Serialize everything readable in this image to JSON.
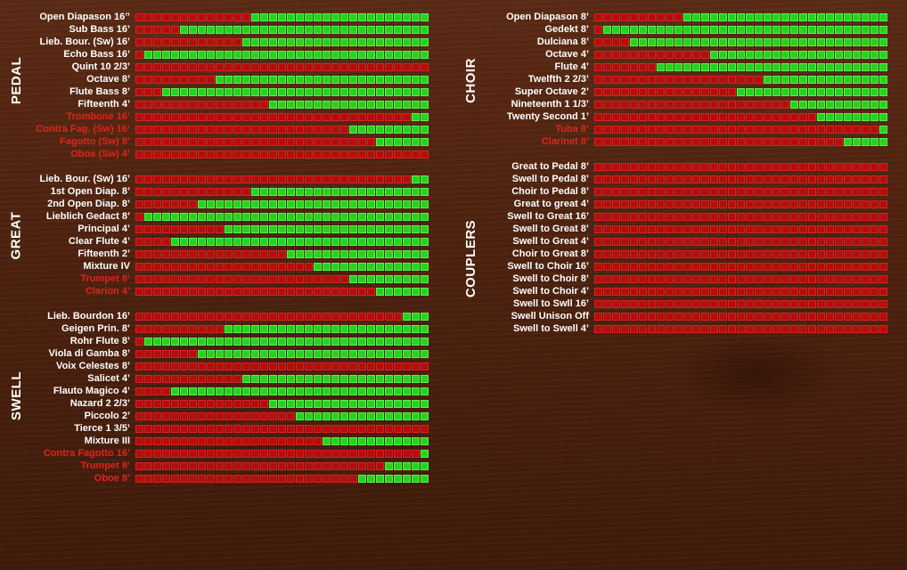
{
  "colors": {
    "engaged": "#22d51c",
    "disengaged": "#b30d0d",
    "reed_label": "#e2231a"
  },
  "divisions": [
    {
      "label": "PEDAL",
      "side": "left",
      "stops": [
        {
          "name": "Open Diapason 16’’",
          "reed": false,
          "level": 0.61
        },
        {
          "name": "Sub Bass 16’",
          "reed": false,
          "level": 0.85
        },
        {
          "name": "Lieb. Bour. (Sw) 16’",
          "reed": false,
          "level": 0.64
        },
        {
          "name": "Echo Bass 16’",
          "reed": false,
          "level": 0.97
        },
        {
          "name": "Quint 10 2/3’",
          "reed": false,
          "level": 0
        },
        {
          "name": "Octave 8’",
          "reed": false,
          "level": 0.73
        },
        {
          "name": "Flute Bass 8’",
          "reed": false,
          "level": 0.91
        },
        {
          "name": "Fifteenth 4’",
          "reed": false,
          "level": 0.55
        },
        {
          "name": "Trombone 16’",
          "reed": true,
          "level": 0.06
        },
        {
          "name": "Contra Fag. (Sw) 16’",
          "reed": true,
          "level": 0.27
        },
        {
          "name": "Fagotto (Sw) 8’",
          "reed": true,
          "level": 0.18
        },
        {
          "name": "Oboe (Sw) 4’",
          "reed": true,
          "level": 0
        }
      ]
    },
    {
      "label": "GREAT",
      "side": "left",
      "stops": [
        {
          "name": "Lieb. Bour. (Sw) 16’",
          "reed": false,
          "level": 0.06
        },
        {
          "name": "1st Open Diap. 8’",
          "reed": false,
          "level": 0.61
        },
        {
          "name": "2nd Open Diap. 8’",
          "reed": false,
          "level": 0.79
        },
        {
          "name": "Lieblich Gedact 8’",
          "reed": false,
          "level": 0.97
        },
        {
          "name": "Principal 4’",
          "reed": false,
          "level": 0.7
        },
        {
          "name": "Clear Flute 4’",
          "reed": false,
          "level": 0.88
        },
        {
          "name": "Fifteenth 2’",
          "reed": false,
          "level": 0.48
        },
        {
          "name": "Mixture IV",
          "reed": false,
          "level": 0.39
        },
        {
          "name": "Trumpet 8’",
          "reed": true,
          "level": 0.27
        },
        {
          "name": "Clarion 4’",
          "reed": true,
          "level": 0.18
        }
      ]
    },
    {
      "label": "SWELL",
      "side": "left",
      "stops": [
        {
          "name": "Lieb. Bourdon 16’",
          "reed": false,
          "level": 0.09
        },
        {
          "name": "Geigen Prin. 8’",
          "reed": false,
          "level": 0.7
        },
        {
          "name": "Rohr Flute 8’",
          "reed": false,
          "level": 0.97
        },
        {
          "name": "Viola di Gamba 8’",
          "reed": false,
          "level": 0.79
        },
        {
          "name": "Voix Celestes 8’",
          "reed": false,
          "level": 0
        },
        {
          "name": "Salicet 4’",
          "reed": false,
          "level": 0.64
        },
        {
          "name": "Flauto Magico 4’",
          "reed": false,
          "level": 0.88
        },
        {
          "name": "Nazard 2 2/3’",
          "reed": false,
          "level": 0.55
        },
        {
          "name": "Piccolo 2’",
          "reed": false,
          "level": 0.45
        },
        {
          "name": "Tierce 1 3/5’",
          "reed": false,
          "level": 0
        },
        {
          "name": "Mixture III",
          "reed": false,
          "level": 0.36
        },
        {
          "name": "Contra Fagotto 16’",
          "reed": true,
          "level": 0.03
        },
        {
          "name": "Trumpet 8’",
          "reed": true,
          "level": 0.15
        },
        {
          "name": "Oboe 8’",
          "reed": true,
          "level": 0.24
        }
      ]
    },
    {
      "label": "CHOIR",
      "side": "right",
      "stops": [
        {
          "name": "Open Diapason 8’",
          "reed": false,
          "level": 0.7
        },
        {
          "name": "Gedekt 8’",
          "reed": false,
          "level": 0.97
        },
        {
          "name": "Dulciana 8’",
          "reed": false,
          "level": 0.88
        },
        {
          "name": "Octave 4’",
          "reed": false,
          "level": 0.61
        },
        {
          "name": "Flute 4’",
          "reed": false,
          "level": 0.79
        },
        {
          "name": "Twelfth 2 2/3’",
          "reed": false,
          "level": 0.42
        },
        {
          "name": "Super Octave 2’",
          "reed": false,
          "level": 0.52
        },
        {
          "name": "Nineteenth 1 1/3’",
          "reed": false,
          "level": 0.33
        },
        {
          "name": "Twenty Second 1’",
          "reed": false,
          "level": 0.24
        },
        {
          "name": "Tuba 8’",
          "reed": true,
          "level": 0.03
        },
        {
          "name": "Clarinet 8’",
          "reed": true,
          "level": 0.15
        }
      ]
    },
    {
      "label": "COUPLERS",
      "side": "right",
      "stops": [
        {
          "name": "Great to Pedal 8’",
          "reed": false,
          "level": 0
        },
        {
          "name": "Swell to Pedal 8’",
          "reed": false,
          "level": 0
        },
        {
          "name": "Choir to Pedal 8’",
          "reed": false,
          "level": 0
        },
        {
          "name": "Great to great 4’",
          "reed": false,
          "level": 0
        },
        {
          "name": "Swell to Great 16’",
          "reed": false,
          "level": 0
        },
        {
          "name": "Swell to Great 8’",
          "reed": false,
          "level": 0
        },
        {
          "name": "Swell to Great 4’",
          "reed": false,
          "level": 0
        },
        {
          "name": "Choir to Great 8’",
          "reed": false,
          "level": 0
        },
        {
          "name": "Swell to Choir 16’",
          "reed": false,
          "level": 0
        },
        {
          "name": "Swell to Choir 8’",
          "reed": false,
          "level": 0
        },
        {
          "name": "Swell to Choir 4’",
          "reed": false,
          "level": 0
        },
        {
          "name": "Swell to Swll 16’",
          "reed": false,
          "level": 0
        },
        {
          "name": "Swell Unison Off",
          "reed": false,
          "level": 0
        },
        {
          "name": "Swell to Swell 4’",
          "reed": false,
          "level": 0
        }
      ]
    }
  ]
}
